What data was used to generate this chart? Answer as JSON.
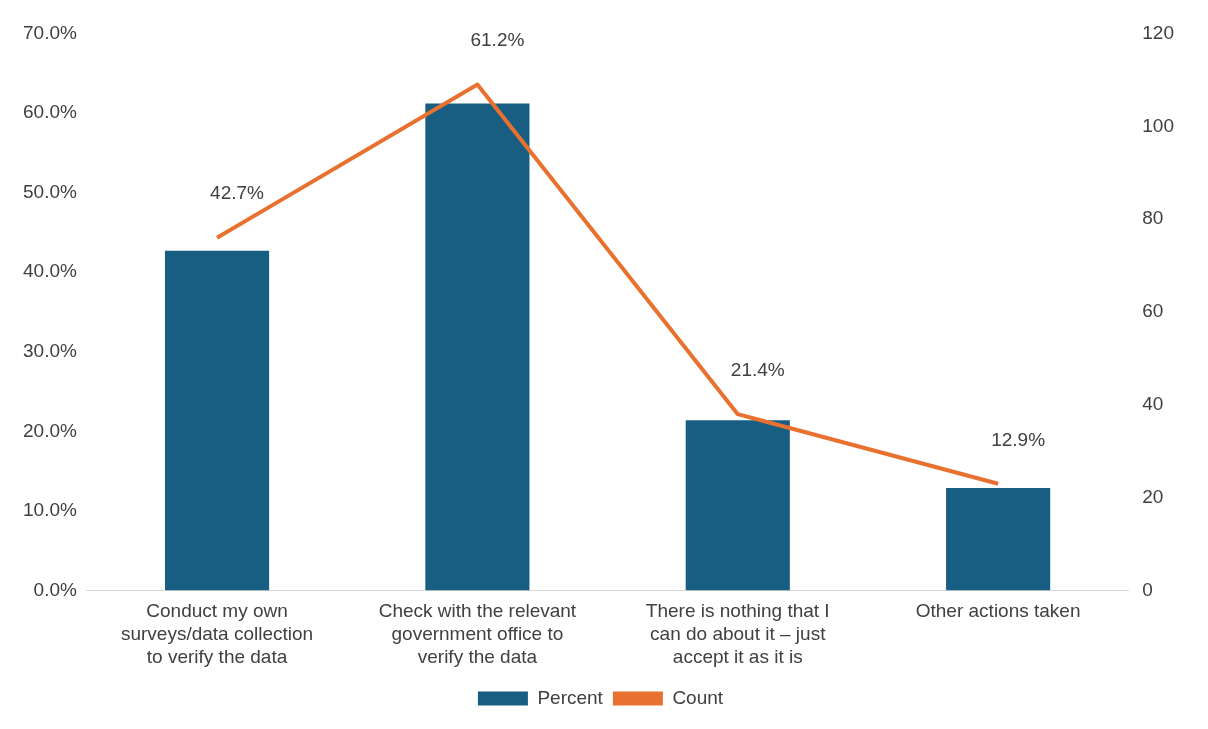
{
  "chart_data": {
    "type": "bar",
    "categories": [
      "Conduct my own surveys/data collection to verify the data",
      "Check with the relevant government office to verify the data",
      "There is nothing that I can do about it – just accept it as it is",
      "Other actions taken"
    ],
    "series": [
      {
        "name": "Percent",
        "color": "#175e82",
        "values": [
          42.7,
          61.2,
          21.4,
          12.9
        ],
        "value_labels": [
          "42.7%",
          "61.2%",
          "21.4%",
          "12.9%"
        ]
      },
      {
        "name": "Count",
        "type": "line",
        "axis": "y2",
        "color": "#e8712f",
        "values": [
          76,
          109,
          38,
          23
        ],
        "marker": "none"
      }
    ],
    "ylim": [
      0,
      70
    ],
    "yticks": [
      {
        "value": 0,
        "label": "0.0%"
      },
      {
        "value": 10,
        "label": "10.0%"
      },
      {
        "value": 20,
        "label": "20.0%"
      },
      {
        "value": 30,
        "label": "30.0%"
      },
      {
        "value": 40,
        "label": "40.0%"
      },
      {
        "value": 50,
        "label": "50.0%"
      },
      {
        "value": 60,
        "label": "60.0%"
      },
      {
        "value": 70,
        "label": "70.0%"
      }
    ],
    "y2lim": [
      0,
      120
    ],
    "y2ticks": [
      0,
      20,
      40,
      60,
      80,
      100,
      120
    ],
    "grid": false,
    "legend": "bottom"
  }
}
